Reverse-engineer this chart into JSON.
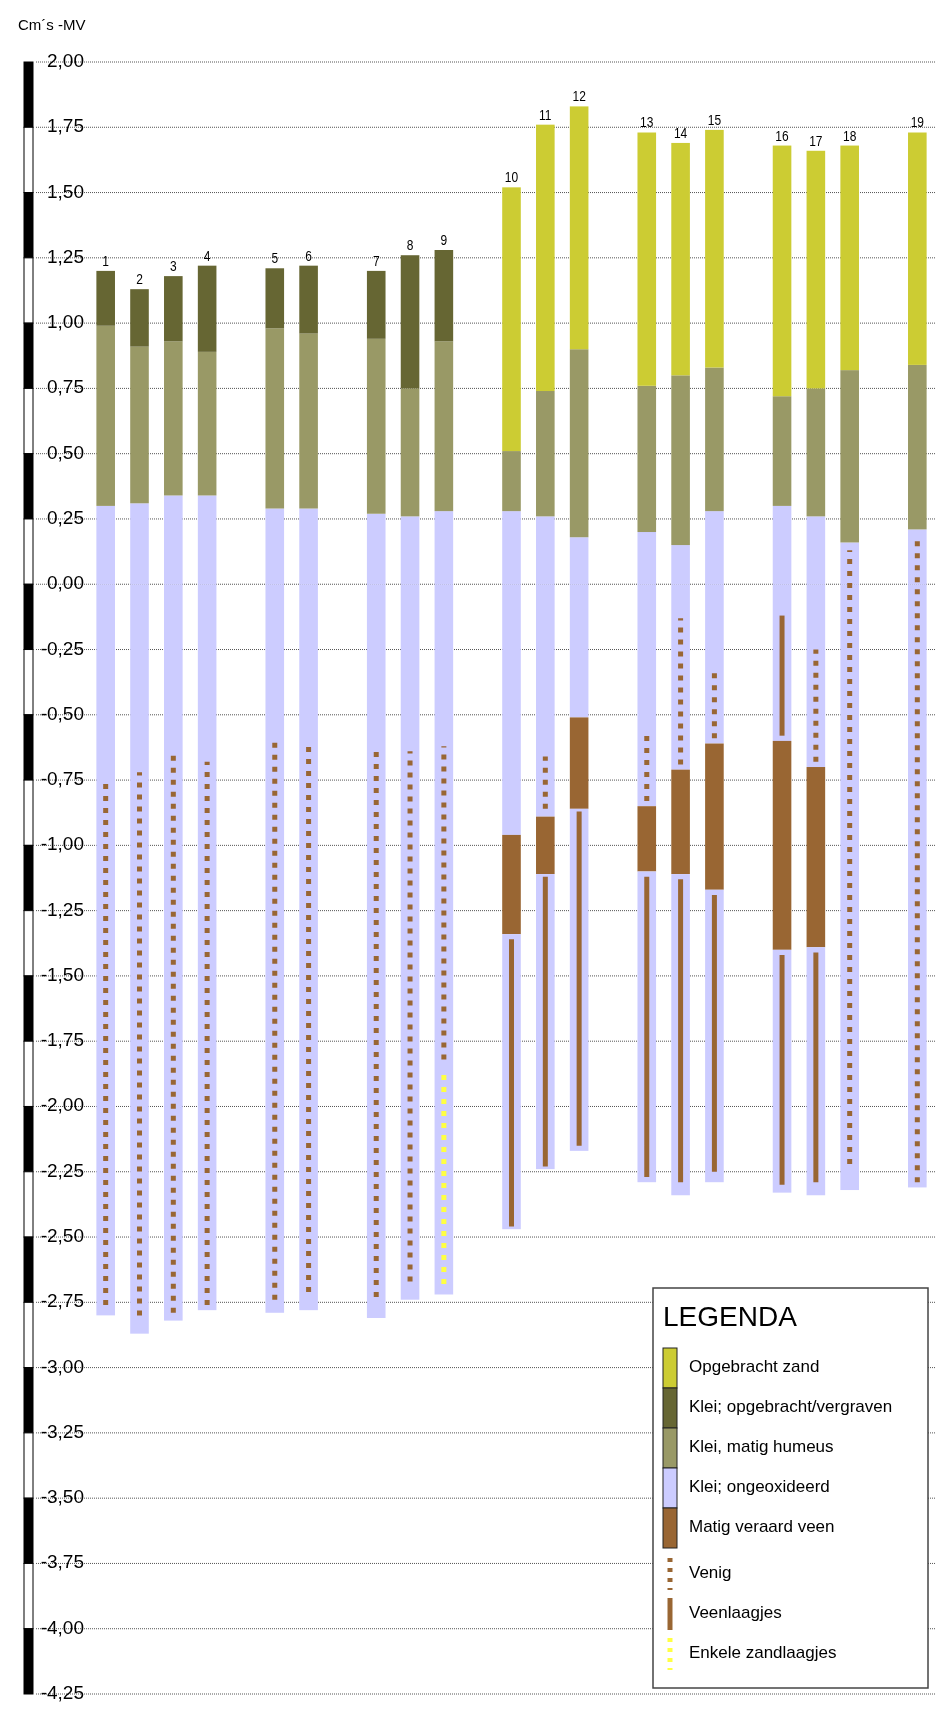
{
  "chart_data": {
    "type": "bar",
    "ylabel": "Cm´s -MV",
    "legend_title": "LEGENDA",
    "legend": "bottom right",
    "grid": "y",
    "stacked": true,
    "categories": [
      "1",
      "2",
      "3",
      "4",
      null,
      "5",
      "6",
      null,
      "7",
      "8",
      "9",
      null,
      "10",
      "11",
      "12",
      null,
      "13",
      "14",
      "15",
      null,
      "16",
      "17",
      "18",
      null,
      "19"
    ],
    "ylim": [
      -4.25,
      2
    ],
    "yticks": [
      {
        "value": 2,
        "label": "2,00"
      },
      {
        "value": 1.75,
        "label": "1,75"
      },
      {
        "value": 1.5,
        "label": "1,50"
      },
      {
        "value": 1.25,
        "label": "1,25"
      },
      {
        "value": 1,
        "label": "1,00"
      },
      {
        "value": 0.75,
        "label": "0,75"
      },
      {
        "value": 0.5,
        "label": "0,50"
      },
      {
        "value": 0.25,
        "label": "0,25"
      },
      {
        "value": 0,
        "label": "0,00"
      },
      {
        "value": -0.25,
        "label": "-0,25"
      },
      {
        "value": -0.5,
        "label": "-0,50"
      },
      {
        "value": -0.75,
        "label": "-0,75"
      },
      {
        "value": -1,
        "label": "-1,00"
      },
      {
        "value": -1.25,
        "label": "-1,25"
      },
      {
        "value": -1.5,
        "label": "-1,50"
      },
      {
        "value": -1.75,
        "label": "-1,75"
      },
      {
        "value": -2,
        "label": "-2,00"
      },
      {
        "value": -2.25,
        "label": "-2,25"
      },
      {
        "value": -2.5,
        "label": "-2,50"
      },
      {
        "value": -2.75,
        "label": "-2,75"
      },
      {
        "value": -3,
        "label": "-3,00"
      },
      {
        "value": -3.25,
        "label": "-3,25"
      },
      {
        "value": -3.5,
        "label": "-3,50"
      },
      {
        "value": -3.75,
        "label": "-3,75"
      },
      {
        "value": -4,
        "label": "-4,00"
      },
      {
        "value": -4.25,
        "label": "-4,25"
      }
    ],
    "series": [
      {
        "color": "#ccccff",
        "values": [
          -2.8,
          -2.87,
          -2.82,
          -2.78,
          null,
          -2.79,
          -2.78,
          null,
          -2.81,
          -2.74,
          -2.72,
          null,
          -0.96,
          -0.89,
          -0.51,
          null,
          -0.85,
          -0.71,
          -0.61,
          null,
          -0.6,
          -0.7,
          -2.32,
          null,
          -2.31
        ]
      },
      {
        "name": "Matig veraard veen",
        "color": "#996633",
        "values": [
          null,
          null,
          null,
          null,
          null,
          null,
          null,
          null,
          null,
          null,
          null,
          null,
          -0.38,
          -0.22,
          -0.35,
          null,
          -0.25,
          -0.4,
          -0.56,
          null,
          -0.8,
          -0.69,
          null,
          null,
          null
        ]
      },
      {
        "color": "#ccccff",
        "values": [
          null,
          null,
          null,
          null,
          null,
          null,
          null,
          null,
          null,
          null,
          null,
          null,
          -1.13,
          -1.13,
          -1.31,
          null,
          -1.19,
          -1.23,
          -1.12,
          null,
          -0.93,
          -0.95,
          null,
          null,
          null
        ]
      },
      {
        "name": "Klei; ongeoxideerd",
        "color": "#ccccff",
        "values": [
          0.3,
          0.31,
          0.34,
          0.34,
          null,
          0.29,
          0.29,
          null,
          0.27,
          0.26,
          0.28,
          null,
          0.28,
          0.26,
          0.18,
          null,
          0.2,
          0.15,
          0.28,
          null,
          0.3,
          0.26,
          0.16,
          null,
          0.21
        ]
      },
      {
        "name": "Klei, matig humeus",
        "color": "#999966",
        "values": [
          0.69,
          0.6,
          0.59,
          0.55,
          null,
          0.69,
          0.67,
          null,
          0.67,
          0.49,
          0.65,
          null,
          0.23,
          0.48,
          0.72,
          null,
          0.56,
          0.65,
          0.55,
          null,
          0.42,
          0.49,
          0.66,
          null,
          0.63
        ]
      },
      {
        "name": "Klei; opgebracht/vergraven",
        "color": "#666633",
        "values": [
          0.21,
          0.22,
          0.25,
          0.33,
          null,
          0.23,
          0.26,
          null,
          0.26,
          0.51,
          0.35,
          null,
          null,
          null,
          null,
          null,
          null,
          null,
          null,
          null,
          null,
          null,
          null,
          null,
          null
        ]
      },
      {
        "name": "Opgebracht zand",
        "color": "#cccc33",
        "values": [
          null,
          null,
          null,
          null,
          null,
          null,
          null,
          null,
          null,
          null,
          null,
          null,
          1.01,
          1.02,
          0.93,
          null,
          0.97,
          0.89,
          0.91,
          null,
          0.96,
          0.91,
          0.86,
          null,
          0.89
        ]
      },
      {
        "name": "Venig",
        "type": "line",
        "color": "#996633",
        "line_style": "dotted",
        "x": [
          "1",
          "1",
          "1",
          "2",
          "2",
          "2",
          "3",
          "3",
          "3",
          "4",
          "4",
          "4",
          "5",
          "5",
          "5",
          "6",
          "6",
          "6",
          "7",
          "7",
          "7",
          "8",
          "8",
          "8",
          "9",
          "9",
          "9",
          "11",
          "11",
          "11",
          "13",
          "13",
          "13",
          "14",
          "14",
          "14",
          "15",
          "15",
          "15",
          "17",
          "17",
          "17",
          "18",
          "18",
          "18",
          "19",
          "19"
        ],
        "values": [
          -2.76,
          -0.74,
          null,
          -2.8,
          -0.72,
          null,
          -2.79,
          -0.65,
          null,
          -2.76,
          -0.68,
          null,
          -2.74,
          -0.59,
          null,
          -2.71,
          -0.62,
          null,
          -2.73,
          -0.64,
          null,
          -2.67,
          -0.64,
          null,
          -1.82,
          -0.62,
          null,
          -0.86,
          -0.66,
          null,
          -0.83,
          -0.58,
          null,
          -0.69,
          -0.13,
          null,
          -0.59,
          -0.33,
          null,
          -0.68,
          -0.25,
          null,
          -2.22,
          0.13,
          null,
          -2.29,
          0.19
        ]
      },
      {
        "name": "Veenlaagjes",
        "type": "line",
        "color": "#996633",
        "line_style": "solid",
        "x": [
          "10",
          "10",
          "10",
          "11",
          "11",
          "11",
          "12",
          "12",
          "12",
          "13",
          "13",
          "13",
          "14",
          "14",
          "14",
          "15",
          "15",
          "15",
          "16",
          "16",
          "16",
          "17",
          "17"
        ],
        "values": [
          -2.46,
          -1.36,
          null,
          -2.23,
          -1.12,
          null,
          -2.15,
          -0.87,
          null,
          -2.27,
          -1.12,
          null,
          -2.29,
          -1.13,
          null,
          -2.25,
          -1.19,
          null,
          -2.3,
          -1.42,
          null,
          -2.29,
          -1.41
        ]
      },
      {
        "type": "line",
        "color": "#996633",
        "line_style": "solid",
        "x": [
          "16",
          "16"
        ],
        "values": [
          -0.58,
          -0.12
        ]
      },
      {
        "name": "Enkele zandlaagjes",
        "type": "line",
        "color": "#ffff44",
        "line_style": "dotted",
        "x": [
          "9",
          "9"
        ],
        "values": [
          -2.68,
          -1.86
        ]
      }
    ]
  }
}
